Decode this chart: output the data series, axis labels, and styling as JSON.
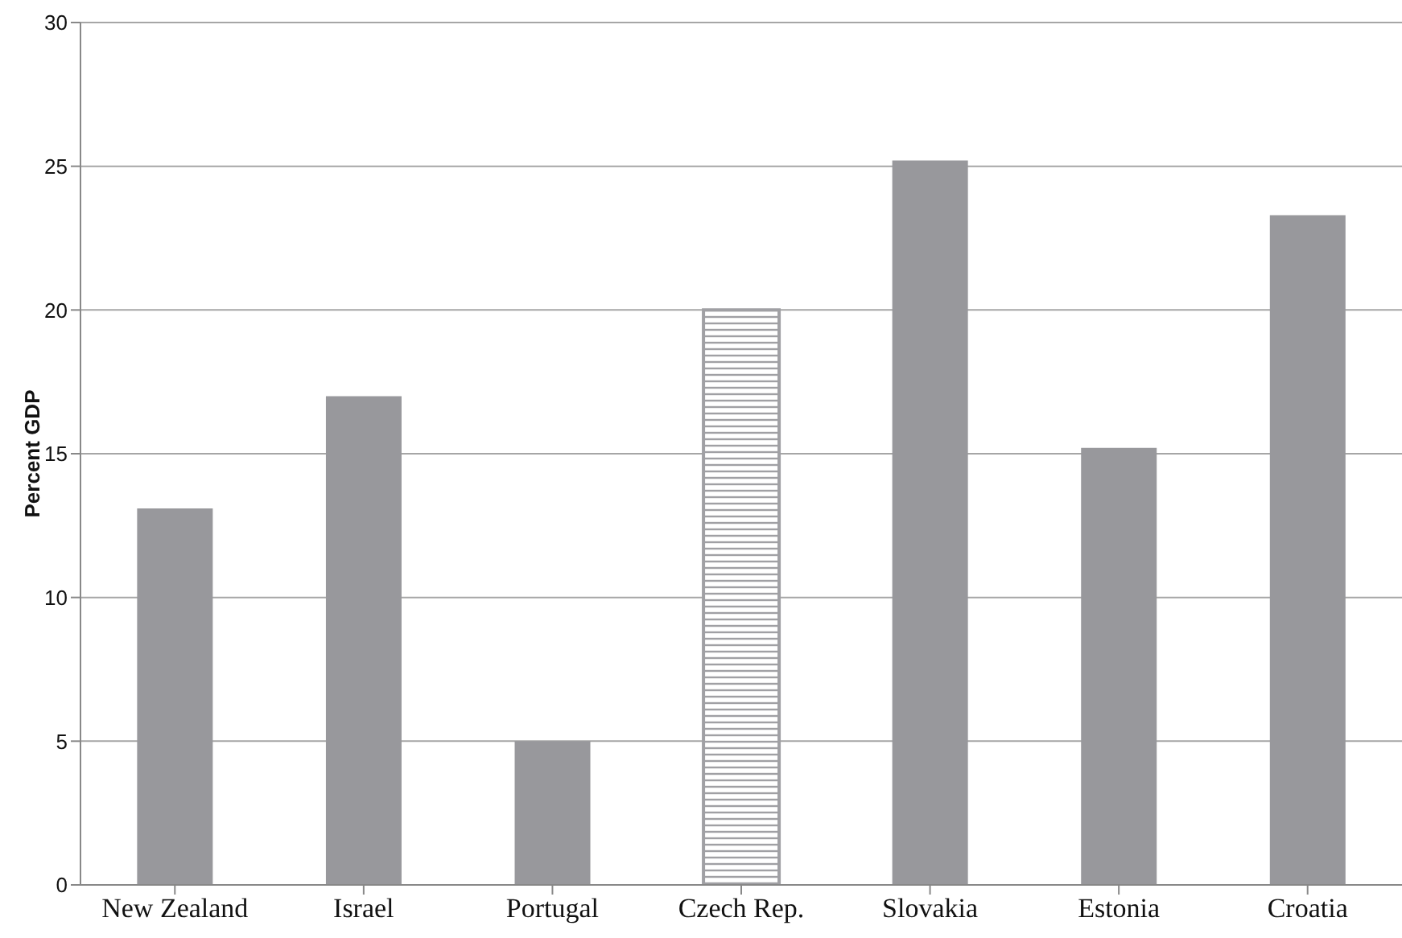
{
  "chart_data": {
    "type": "bar",
    "ylabel": "Percent GDP",
    "categories": [
      "New Zealand",
      "Israel",
      "Portugal",
      "Czech Rep.",
      "Slovakia",
      "Estonia",
      "Croatia"
    ],
    "values": [
      13.1,
      17,
      5,
      20,
      25.2,
      15.2,
      23.3
    ],
    "color": "#98989c",
    "colors": [
      "#98989c",
      "#98989c",
      "#98989c",
      "#a0a0a4",
      "#98989c",
      "#98989c",
      "#98989c"
    ],
    "ylim": [
      0,
      30
    ],
    "yticks": [
      0,
      5,
      10,
      15,
      20,
      25,
      30
    ],
    "grid": "y"
  }
}
